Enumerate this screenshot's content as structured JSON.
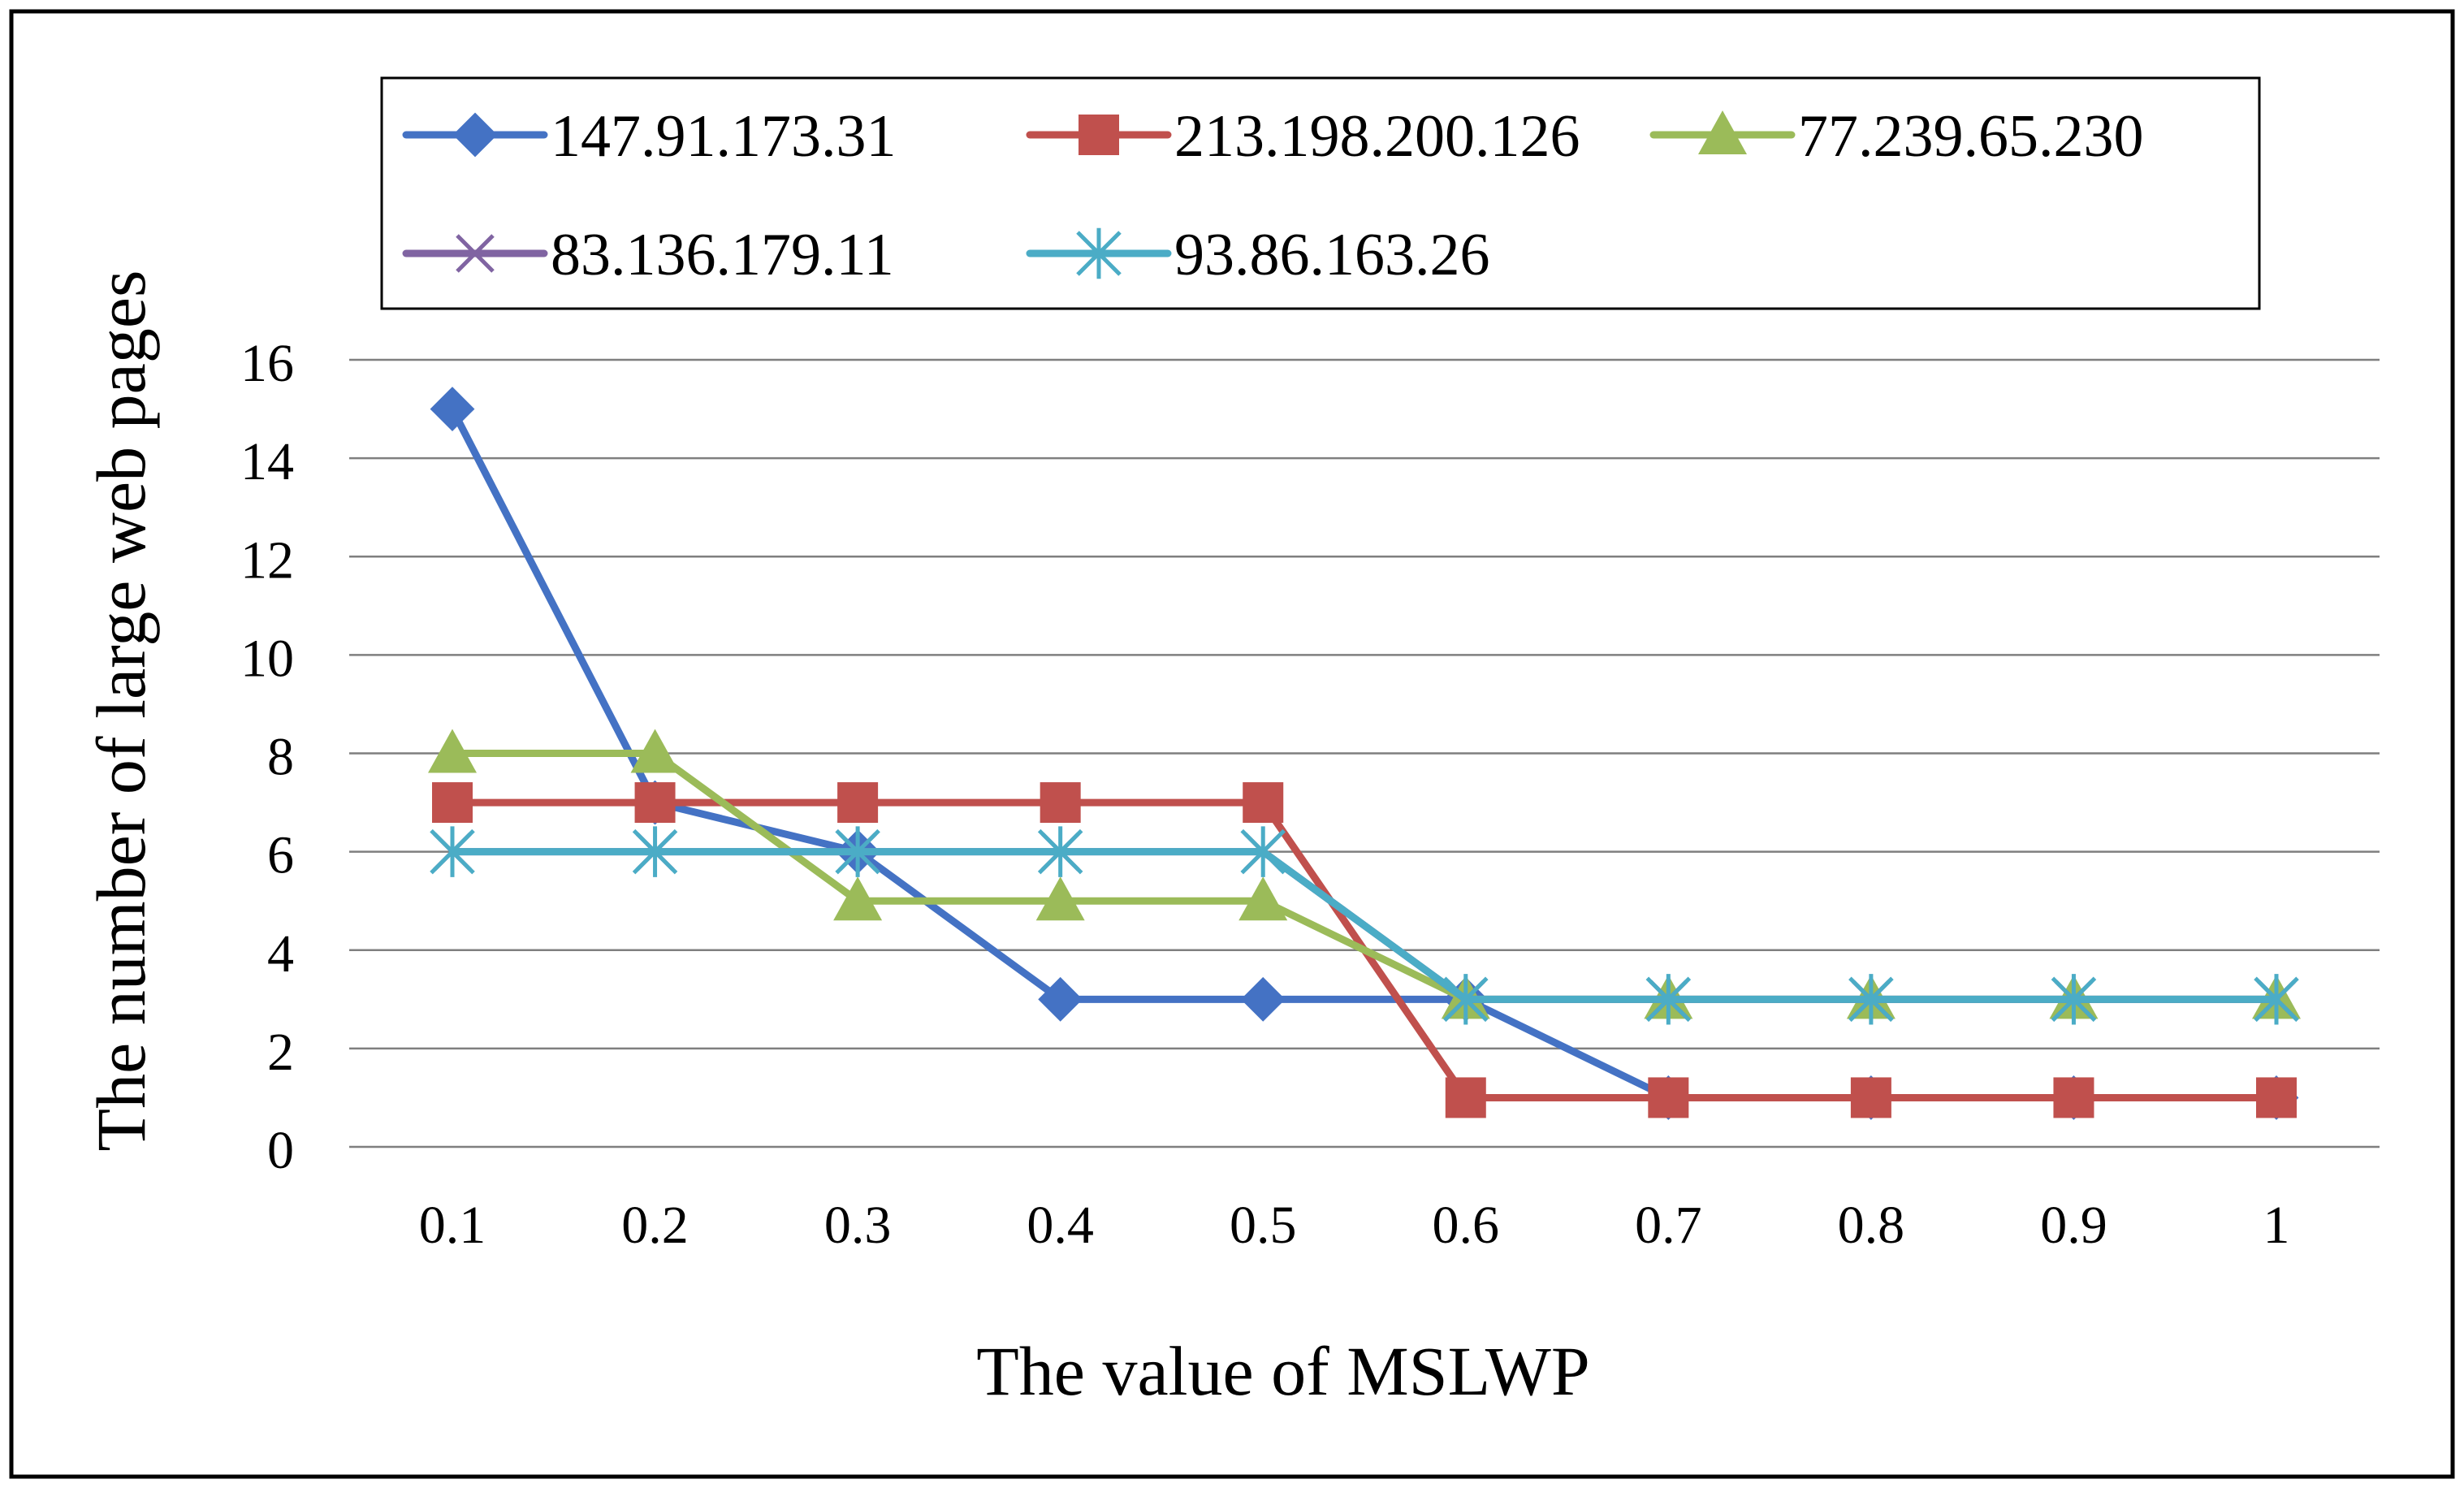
{
  "chart_data": {
    "type": "line",
    "title": "",
    "xlabel": "The value of MSLWP",
    "ylabel": "The number of large web pages",
    "categories": [
      "0.1",
      "0.2",
      "0.3",
      "0.4",
      "0.5",
      "0.6",
      "0.7",
      "0.8",
      "0.9",
      "1"
    ],
    "ylim": [
      0,
      16
    ],
    "yticks": [
      "0",
      "2",
      "4",
      "6",
      "8",
      "10",
      "12",
      "14",
      "16"
    ],
    "grid": "horizontal",
    "legend_position": "top",
    "series": [
      {
        "name": "147.91.173.31",
        "marker": "diamond",
        "color": "#4472C4",
        "values": [
          15,
          7,
          6,
          3,
          3,
          3,
          1,
          1,
          1,
          1
        ]
      },
      {
        "name": "213.198.200.126",
        "marker": "square",
        "color": "#C0504D",
        "values": [
          7,
          7,
          7,
          7,
          7,
          1,
          1,
          1,
          1,
          1
        ]
      },
      {
        "name": "77.239.65.230",
        "marker": "triangle",
        "color": "#9BBB59",
        "values": [
          8,
          8,
          5,
          5,
          5,
          3,
          3,
          3,
          3,
          3
        ]
      },
      {
        "name": "83.136.179.11",
        "marker": "x",
        "color": "#8064A2",
        "values": [
          6,
          6,
          6,
          6,
          6,
          3,
          3,
          3,
          3,
          3
        ]
      },
      {
        "name": "93.86.163.26",
        "marker": "star",
        "color": "#4BACC6",
        "values": [
          6,
          6,
          6,
          6,
          6,
          3,
          3,
          3,
          3,
          3
        ]
      }
    ]
  }
}
